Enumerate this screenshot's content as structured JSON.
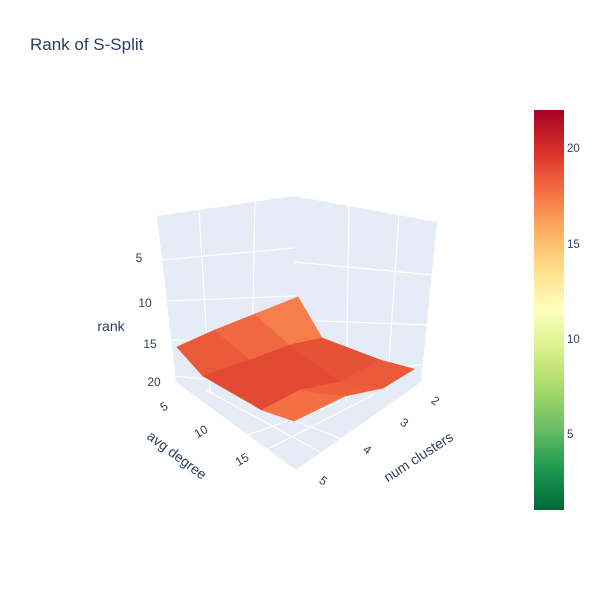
{
  "chart_data": {
    "type": "surface",
    "title": "Rank of S-Split",
    "x_axis": {
      "label": "num clusters",
      "ticks": [
        "2",
        "3",
        "4",
        "5"
      ]
    },
    "y_axis": {
      "label": "avg degree",
      "ticks": [
        "5",
        "10",
        "15"
      ]
    },
    "z_axis": {
      "label": "rank",
      "ticks": [
        "5",
        "10",
        "15",
        "20"
      ],
      "reversed": true
    },
    "colorscale": "RdYlGn reversed",
    "colorbar": {
      "range": [
        1,
        22
      ],
      "ticks": [
        "5",
        "10",
        "15",
        "20"
      ]
    },
    "grid": true,
    "surface": {
      "x": [
        2,
        3,
        4,
        5
      ],
      "y": [
        5,
        10,
        15,
        20
      ],
      "z": [
        [
          19,
          16,
          18,
          14
        ],
        [
          20,
          19,
          19,
          18
        ],
        [
          18,
          19,
          19,
          19
        ],
        [
          17,
          17,
          18,
          18
        ]
      ]
    },
    "colors": {
      "scene_bg": "#e5ecf6",
      "grid": "#ffffff",
      "text": "#2a3f5f",
      "colorscale_stops": [
        "#006837",
        "#1a9850",
        "#66bd63",
        "#a6d96a",
        "#d9ef8b",
        "#ffffbf",
        "#fee08b",
        "#fdae61",
        "#f46d43",
        "#d73027",
        "#a50026"
      ]
    }
  }
}
